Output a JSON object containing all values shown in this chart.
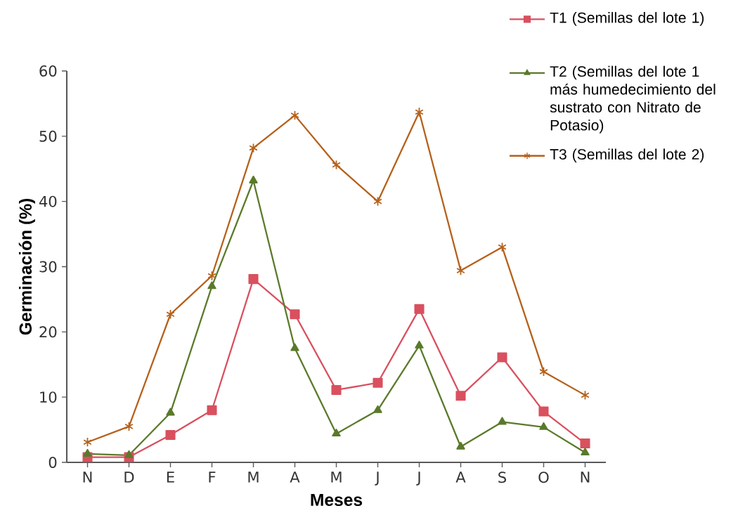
{
  "chart_data": {
    "type": "line",
    "xlabel": "Meses",
    "ylabel": "Germinación (%)",
    "categories": [
      "N",
      "D",
      "E",
      "F",
      "M",
      "A",
      "M",
      "J",
      "J",
      "A",
      "S",
      "O",
      "N"
    ],
    "ylim": [
      0,
      60
    ],
    "yticks": [
      0,
      10,
      20,
      30,
      40,
      50,
      60
    ],
    "grid": false,
    "legend": "top right",
    "line_style": "solid",
    "series": [
      {
        "name": "T1 (Semillas del lote 1)",
        "color": "#d9505f",
        "marker": "square",
        "values": [
          0.8,
          0.8,
          4.2,
          8.0,
          28.1,
          22.7,
          11.1,
          12.2,
          23.5,
          10.2,
          16.1,
          7.8,
          2.9
        ]
      },
      {
        "name": "T2 (Semillas del lote 1 más humedecimiento del sustrato con Nitrato de Potasio)",
        "color": "#5a7a2a",
        "marker": "triangle",
        "values": [
          1.3,
          1.1,
          7.6,
          27.0,
          43.2,
          17.5,
          4.4,
          8.0,
          17.9,
          2.4,
          6.2,
          5.4,
          1.5
        ]
      },
      {
        "name": "T3 (Semillas del lote 2)",
        "color": "#b5601a",
        "marker": "cross",
        "values": [
          3.1,
          5.5,
          22.7,
          28.6,
          48.2,
          53.2,
          45.6,
          40.0,
          53.7,
          29.4,
          33.0,
          13.9,
          10.3
        ]
      }
    ]
  }
}
